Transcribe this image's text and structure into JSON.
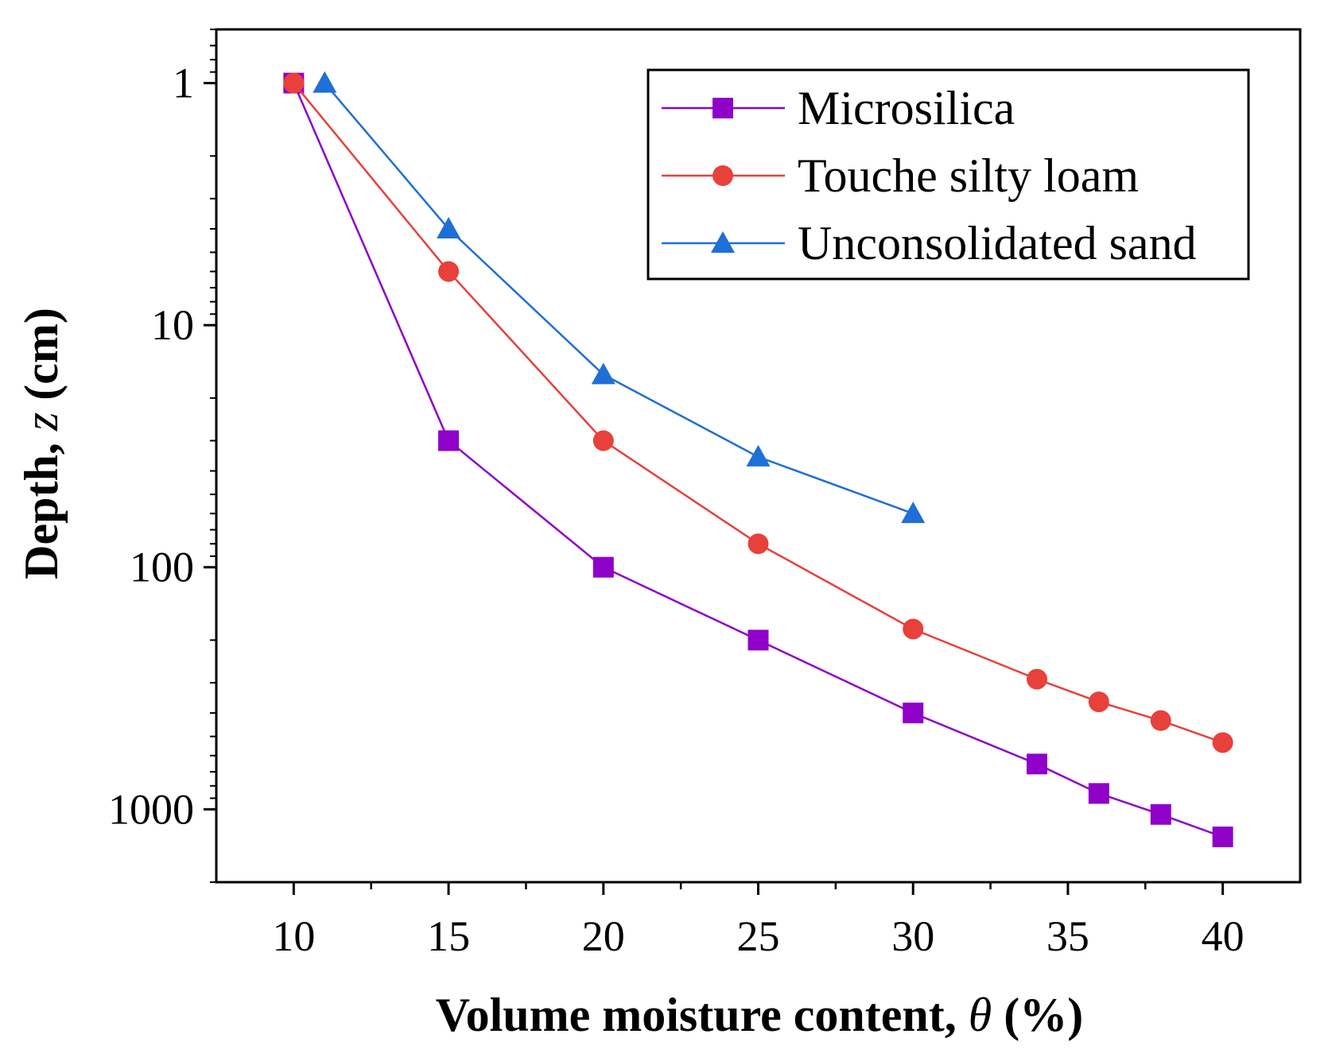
{
  "chart_data": {
    "type": "line",
    "title": "",
    "xlabel": {
      "prefix": "Volume moisture content, ",
      "symbol": "θ",
      "suffix": " (%)"
    },
    "ylabel": {
      "prefix": "Depth, ",
      "symbol": "z",
      "suffix": " (cm)"
    },
    "xlim": [
      7.5,
      42.5
    ],
    "ylim": [
      0.6,
      2000
    ],
    "yscale": "log",
    "yinverted": true,
    "x_ticks": [
      10,
      15,
      20,
      25,
      30,
      35,
      40
    ],
    "y_ticks": [
      {
        "value": 1,
        "label": "1"
      },
      {
        "value": 10,
        "label": "10"
      },
      {
        "value": 100,
        "label": "100"
      },
      {
        "value": 1000,
        "label": "1000"
      }
    ],
    "legend_position": "top-right",
    "series": [
      {
        "name": "Microsilica",
        "marker": "square",
        "color": "#8F00C8",
        "x": [
          10,
          15,
          20,
          25,
          30,
          34,
          36,
          38,
          40
        ],
        "y": [
          1,
          30,
          100,
          200,
          400,
          650,
          860,
          1050,
          1300
        ]
      },
      {
        "name": "Touche silty loam",
        "marker": "circle",
        "color": "#E8403A",
        "x": [
          10,
          15,
          20,
          25,
          30,
          34,
          36,
          38,
          40
        ],
        "y": [
          1,
          6,
          30,
          80,
          180,
          290,
          360,
          430,
          530
        ]
      },
      {
        "name": "Unconsolidated sand",
        "marker": "triangle",
        "color": "#1E6FD6",
        "x": [
          11,
          15,
          20,
          25,
          30
        ],
        "y": [
          1,
          4,
          16,
          35,
          60
        ]
      }
    ]
  }
}
